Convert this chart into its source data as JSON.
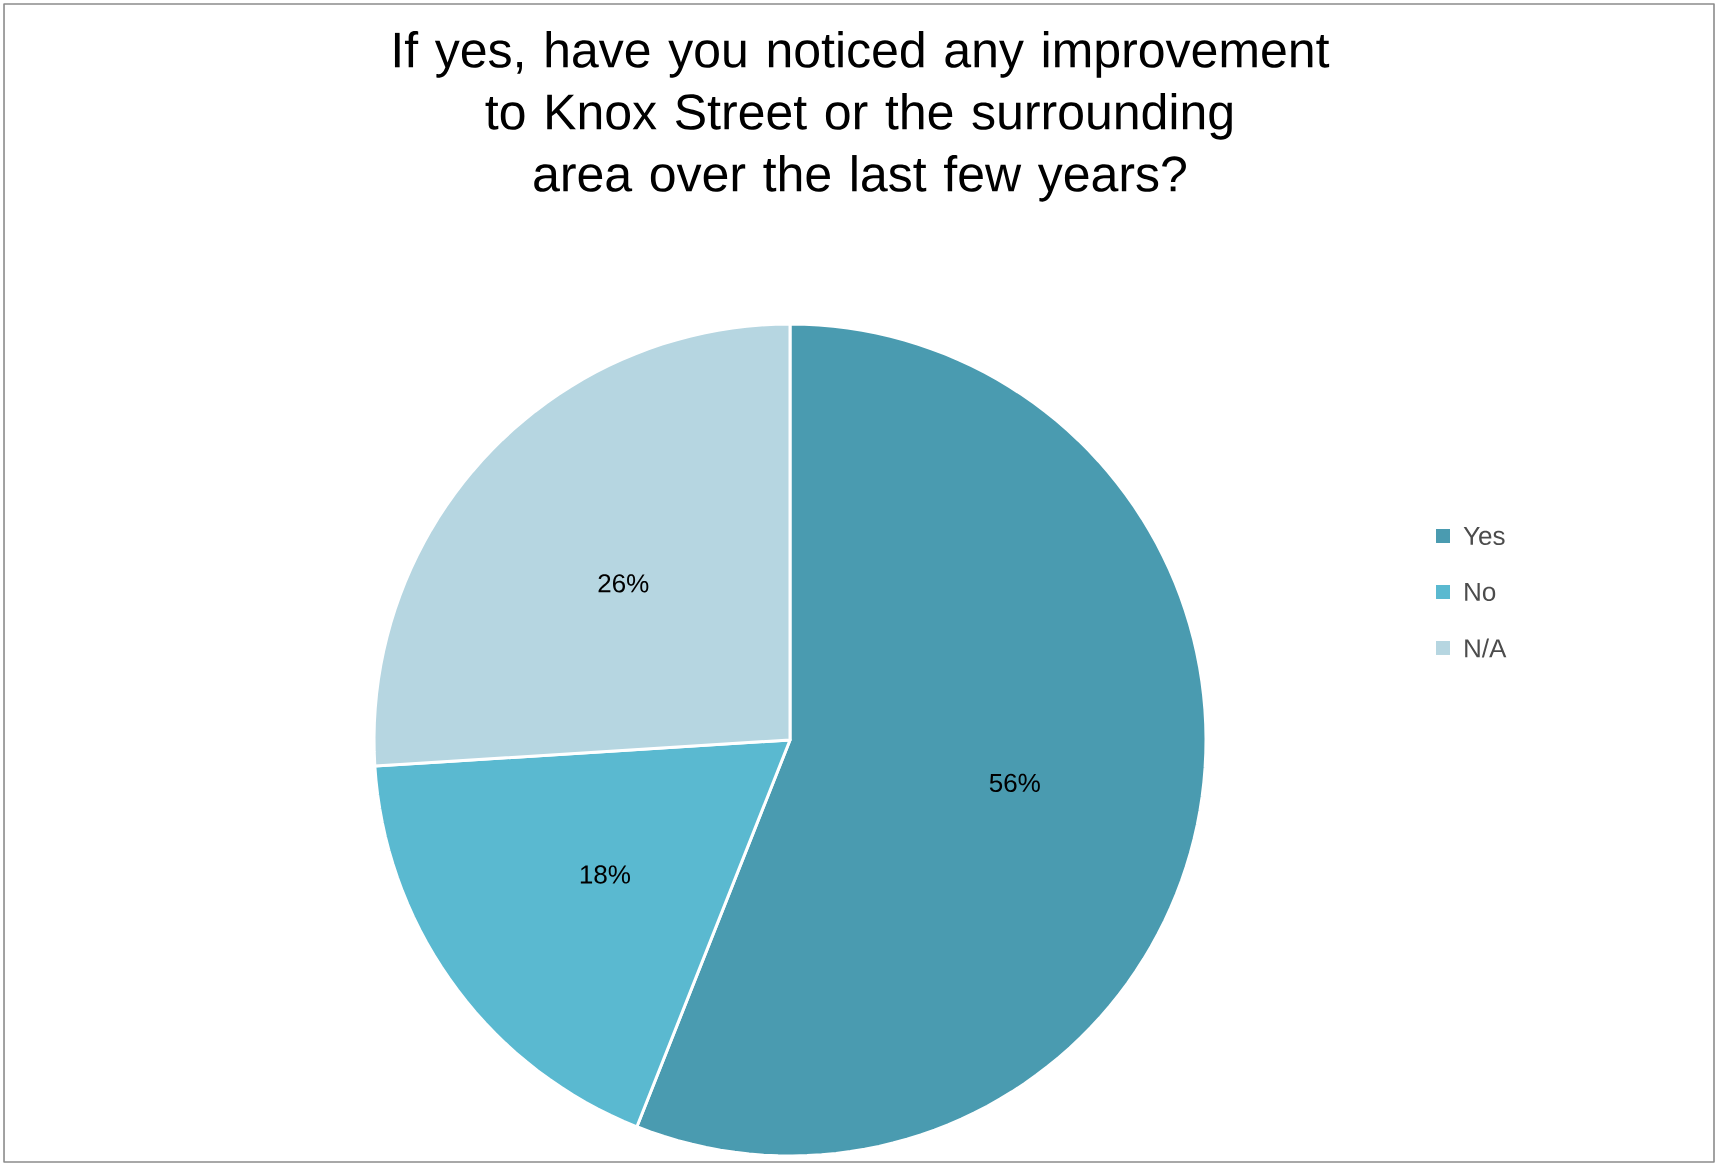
{
  "chart_data": {
    "type": "pie",
    "title": "If yes, have you noticed any improvement to Knox Street or the surrounding area over the last few years?",
    "categories": [
      "Yes",
      "No",
      "N/A"
    ],
    "values": [
      56,
      18,
      26
    ],
    "value_labels": [
      "56%",
      "18%",
      "26%"
    ],
    "colors": [
      "#4a9bb0",
      "#5ab9d0",
      "#b6d6e1"
    ],
    "legend": "right"
  }
}
